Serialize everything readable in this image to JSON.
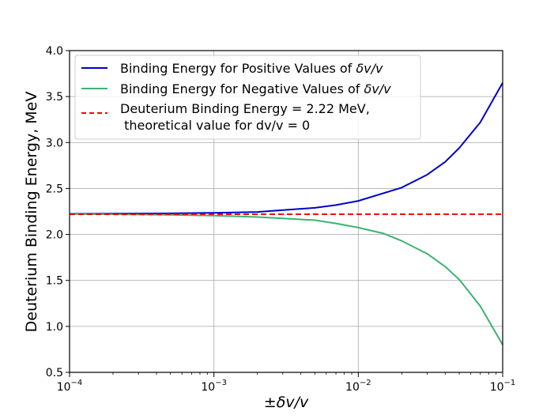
{
  "chart_data": {
    "type": "line",
    "title": "",
    "xlabel": "±δv/v",
    "ylabel": "Deuterium Binding Energy, MeV",
    "xscale": "log",
    "xlim": [
      0.0001,
      0.1
    ],
    "ylim": [
      0.5,
      4.0
    ],
    "grid": true,
    "legend_position": "upper-left",
    "x_ticks": [
      {
        "value": 0.0001,
        "base": "10",
        "exp": "−4"
      },
      {
        "value": 0.001,
        "base": "10",
        "exp": "−3"
      },
      {
        "value": 0.01,
        "base": "10",
        "exp": "−2"
      },
      {
        "value": 0.1,
        "base": "10",
        "exp": "−1"
      }
    ],
    "y_ticks": [
      {
        "value": 0.5,
        "label": "0.5"
      },
      {
        "value": 1.0,
        "label": "1.0"
      },
      {
        "value": 1.5,
        "label": "1.5"
      },
      {
        "value": 2.0,
        "label": "2.0"
      },
      {
        "value": 2.5,
        "label": "2.5"
      },
      {
        "value": 3.0,
        "label": "3.0"
      },
      {
        "value": 3.5,
        "label": "3.5"
      },
      {
        "value": 4.0,
        "label": "4.0"
      }
    ],
    "series": [
      {
        "name": "Binding Energy for Positive Values of δv/v",
        "legend_prefix": "Binding Energy for Positive Values of ",
        "legend_math": "δv/v",
        "color": "#0000cc",
        "style": "solid",
        "x": [
          0.0001,
          0.0002,
          0.0005,
          0.001,
          0.002,
          0.005,
          0.007,
          0.01,
          0.02,
          0.03,
          0.04,
          0.05,
          0.07,
          0.1
        ],
        "y": [
          2.224,
          2.226,
          2.23,
          2.235,
          2.245,
          2.29,
          2.32,
          2.365,
          2.51,
          2.65,
          2.79,
          2.94,
          3.22,
          3.65
        ]
      },
      {
        "name": "Binding Energy for Negative Values of δv/v",
        "legend_prefix": "Binding Energy for Negative Values of ",
        "legend_math": "δv/v",
        "color": "#3cb371",
        "style": "solid",
        "x": [
          0.0001,
          0.0002,
          0.0005,
          0.001,
          0.002,
          0.005,
          0.007,
          0.01,
          0.015,
          0.02,
          0.03,
          0.04,
          0.05,
          0.07,
          0.1
        ],
        "y": [
          2.221,
          2.219,
          2.213,
          2.205,
          2.19,
          2.155,
          2.12,
          2.075,
          2.01,
          1.93,
          1.79,
          1.65,
          1.51,
          1.22,
          0.8
        ]
      },
      {
        "name": "Deuterium Binding Energy = 2.22 MeV, theoretical value for dv/v = 0",
        "legend_line1": "Deuterium Binding Energy = 2.22 MeV,",
        "legend_line2": " theoretical value for dv/v = 0",
        "color": "#ff0000",
        "style": "dashed",
        "x": [
          0.0001,
          0.1
        ],
        "y": [
          2.22,
          2.22
        ]
      }
    ]
  }
}
